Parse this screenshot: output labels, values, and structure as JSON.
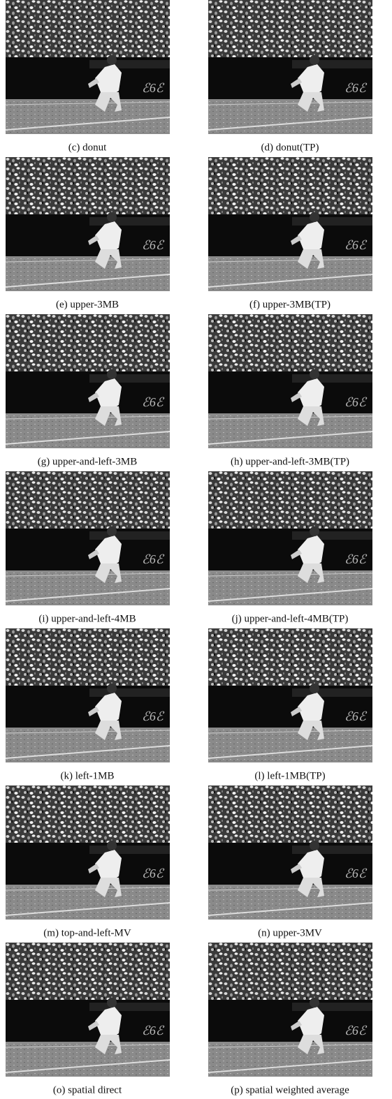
{
  "figures": [
    {
      "caption": "(c) donut"
    },
    {
      "caption": "(d) donut(TP)"
    },
    {
      "caption": "(e) upper-3MB"
    },
    {
      "caption": "(f) upper-3MB(TP)"
    },
    {
      "caption": "(g) upper-and-left-3MB"
    },
    {
      "caption": "(h) upper-and-left-3MB(TP)"
    },
    {
      "caption": "(i) upper-and-left-4MB"
    },
    {
      "caption": "(j) upper-and-left-4MB(TP)"
    },
    {
      "caption": "(k) left-1MB"
    },
    {
      "caption": "(l) left-1MB(TP)"
    },
    {
      "caption": "(m) top-and-left-MV"
    },
    {
      "caption": "(n) upper-3MV"
    },
    {
      "caption": "(o) spatial direct"
    },
    {
      "caption": "(p) spatial weighted average"
    }
  ]
}
